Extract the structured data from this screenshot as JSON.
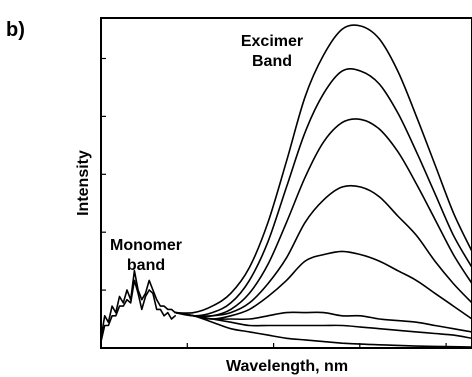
{
  "panel_label": "b)",
  "chart_data": {
    "type": "line",
    "title": "",
    "xlabel": "Wavelength, nm",
    "ylabel": "Intensity",
    "xlim": [
      0,
      100
    ],
    "ylim": [
      0,
      100
    ],
    "grid": false,
    "legend": "none",
    "x_ticks_count": 4,
    "y_ticks_count": 5,
    "annotations": [
      {
        "text": [
          "Excimer",
          "Band"
        ],
        "at_x": 55,
        "at_y": 92
      },
      {
        "text": [
          "Monomer",
          "band"
        ],
        "at_x": 10,
        "at_y": 26
      }
    ],
    "monomer": {
      "note": "shared structured monomer emission at short wavelengths",
      "x": [
        0,
        1,
        2,
        3,
        4,
        5,
        6,
        7,
        8,
        9,
        10,
        11,
        12,
        13,
        14,
        15,
        16,
        17,
        18,
        19,
        20
      ],
      "y": [
        3,
        10,
        8,
        13,
        11,
        16,
        14,
        18,
        15,
        24,
        18,
        15,
        17,
        21,
        18,
        15,
        13,
        13,
        12,
        12,
        11
      ]
    },
    "series": [
      {
        "x": [
          20,
          25,
          30,
          35,
          40,
          45,
          50,
          55,
          60,
          65,
          70,
          75,
          80,
          85,
          90,
          95,
          100
        ],
        "y": [
          11,
          10,
          8,
          6,
          5,
          4,
          3,
          2.5,
          2,
          1.5,
          1.2,
          1,
          0.8,
          0.6,
          0.5,
          0.4,
          0.3
        ]
      },
      {
        "x": [
          20,
          25,
          30,
          35,
          40,
          45,
          50,
          55,
          60,
          65,
          70,
          75,
          80,
          85,
          90,
          95,
          100
        ],
        "y": [
          11,
          10,
          9,
          8,
          7,
          7,
          7,
          7,
          7,
          7,
          6.5,
          6,
          5.5,
          5,
          4.5,
          4,
          3
        ]
      },
      {
        "x": [
          20,
          25,
          30,
          35,
          40,
          45,
          50,
          55,
          60,
          65,
          70,
          75,
          80,
          85,
          90,
          95,
          100
        ],
        "y": [
          11,
          10,
          9,
          9,
          9,
          10,
          11,
          11,
          11,
          10,
          10,
          9,
          8.5,
          8,
          7,
          6,
          5
        ]
      },
      {
        "x": [
          20,
          25,
          30,
          35,
          40,
          45,
          50,
          55,
          60,
          65,
          70,
          75,
          80,
          85,
          90,
          95,
          100
        ],
        "y": [
          11,
          10,
          9,
          10,
          12,
          16,
          21,
          27,
          29,
          30,
          29,
          27,
          24,
          21,
          17,
          13,
          9
        ]
      },
      {
        "x": [
          20,
          25,
          30,
          35,
          40,
          45,
          50,
          55,
          60,
          65,
          70,
          75,
          80,
          85,
          90,
          95,
          100
        ],
        "y": [
          11,
          10,
          10,
          11,
          14,
          20,
          28,
          39,
          46,
          50,
          50,
          47,
          41,
          35,
          27,
          20,
          14
        ]
      },
      {
        "x": [
          20,
          25,
          30,
          35,
          40,
          45,
          50,
          55,
          60,
          65,
          70,
          75,
          80,
          85,
          90,
          95,
          100
        ],
        "y": [
          11,
          10,
          10,
          12,
          17,
          26,
          39,
          53,
          64,
          70,
          71,
          68,
          61,
          51,
          40,
          29,
          20
        ]
      },
      {
        "x": [
          20,
          25,
          30,
          35,
          40,
          45,
          50,
          55,
          60,
          65,
          70,
          75,
          80,
          85,
          90,
          95,
          100
        ],
        "y": [
          11,
          10,
          11,
          14,
          21,
          33,
          50,
          67,
          79,
          86,
          86,
          82,
          73,
          61,
          48,
          35,
          25
        ]
      },
      {
        "x": [
          20,
          25,
          30,
          35,
          40,
          45,
          50,
          55,
          60,
          65,
          70,
          75,
          80,
          85,
          90,
          95,
          100
        ],
        "y": [
          11,
          11,
          13,
          17,
          25,
          39,
          58,
          78,
          91,
          99,
          100,
          96,
          86,
          72,
          57,
          42,
          30
        ]
      }
    ]
  }
}
